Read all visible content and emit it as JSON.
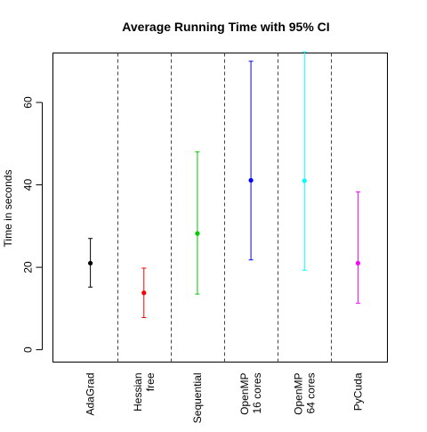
{
  "chart_data": {
    "type": "errorbar",
    "title": "Average Running Time with 95% CI",
    "xlabel": "",
    "ylabel": "Time in seconds",
    "ylim": [
      -3,
      72
    ],
    "yticks": [
      0,
      20,
      40,
      60
    ],
    "grid": false,
    "separators": "dashed",
    "categories": [
      {
        "label_lines": [
          "AdaGrad"
        ],
        "mean": 21.0,
        "lower": 15.2,
        "upper": 27.0,
        "color": "#000000"
      },
      {
        "label_lines": [
          "Hessian",
          "free"
        ],
        "mean": 13.8,
        "lower": 7.8,
        "upper": 19.8,
        "color": "#ff0000"
      },
      {
        "label_lines": [
          "Sequential"
        ],
        "mean": 28.2,
        "lower": 13.5,
        "upper": 48.0,
        "color": "#00cd00"
      },
      {
        "label_lines": [
          "OpenMP",
          "16 cores"
        ],
        "mean": 41.1,
        "lower": 21.8,
        "upper": 70.0,
        "color": "#0000ff"
      },
      {
        "label_lines": [
          "OpenMP",
          "64 cores"
        ],
        "mean": 41.0,
        "lower": 19.3,
        "upper": 72.3,
        "color": "#00ffff"
      },
      {
        "label_lines": [
          "PyCuda"
        ],
        "mean": 21.0,
        "lower": 11.3,
        "upper": 38.3,
        "color": "#ff00ff"
      }
    ]
  }
}
